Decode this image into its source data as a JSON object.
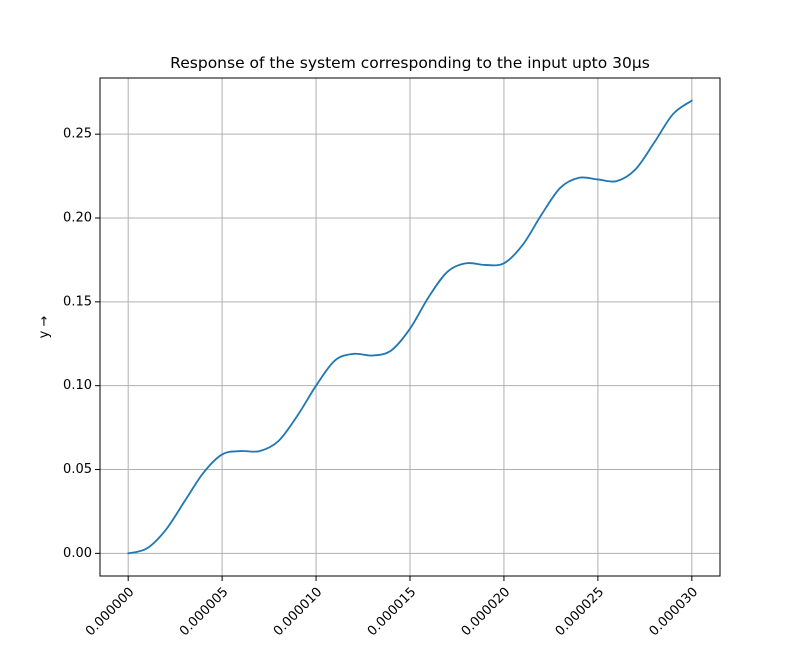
{
  "chart_data": {
    "type": "line",
    "title": "Response of the system corresponding to the input upto 30μs",
    "xlabel": "",
    "ylabel": "y →",
    "xlim": [
      -1.5e-06,
      3.15e-05
    ],
    "ylim": [
      -0.0135,
      0.2835
    ],
    "xticks": [
      0.0,
      5e-06,
      1e-05,
      1.5e-05,
      2e-05,
      2.5e-05,
      3e-05
    ],
    "xtick_labels": [
      "0.000000",
      "0.000005",
      "0.000010",
      "0.000015",
      "0.000020",
      "0.000025",
      "0.000030"
    ],
    "yticks": [
      0.0,
      0.05,
      0.1,
      0.15,
      0.2,
      0.25
    ],
    "ytick_labels": [
      "0.00",
      "0.05",
      "0.10",
      "0.15",
      "0.20",
      "0.25"
    ],
    "grid": true,
    "colors": {
      "line": "#1f77b4",
      "grid": "#b0b0b0",
      "axis": "#000000"
    },
    "series": [
      {
        "x": [
          0.0,
          1e-06,
          2e-06,
          3e-06,
          4e-06,
          5e-06,
          6e-06,
          7e-06,
          8e-06,
          9e-06,
          1e-05,
          1.1e-05,
          1.2e-05,
          1.3e-05,
          1.4e-05,
          1.5e-05,
          1.6e-05,
          1.7e-05,
          1.8e-05,
          1.9e-05,
          2e-05,
          2.1e-05,
          2.2e-05,
          2.3e-05,
          2.4e-05,
          2.5e-05,
          2.6e-05,
          2.7e-05,
          2.8e-05,
          2.9e-05,
          3e-05
        ],
        "y": [
          0.0,
          0.003,
          0.014,
          0.031,
          0.048,
          0.059,
          0.061,
          0.061,
          0.067,
          0.082,
          0.1,
          0.115,
          0.119,
          0.118,
          0.121,
          0.134,
          0.153,
          0.168,
          0.173,
          0.172,
          0.173,
          0.184,
          0.202,
          0.218,
          0.224,
          0.223,
          0.222,
          0.229,
          0.245,
          0.262,
          0.27
        ]
      }
    ]
  }
}
